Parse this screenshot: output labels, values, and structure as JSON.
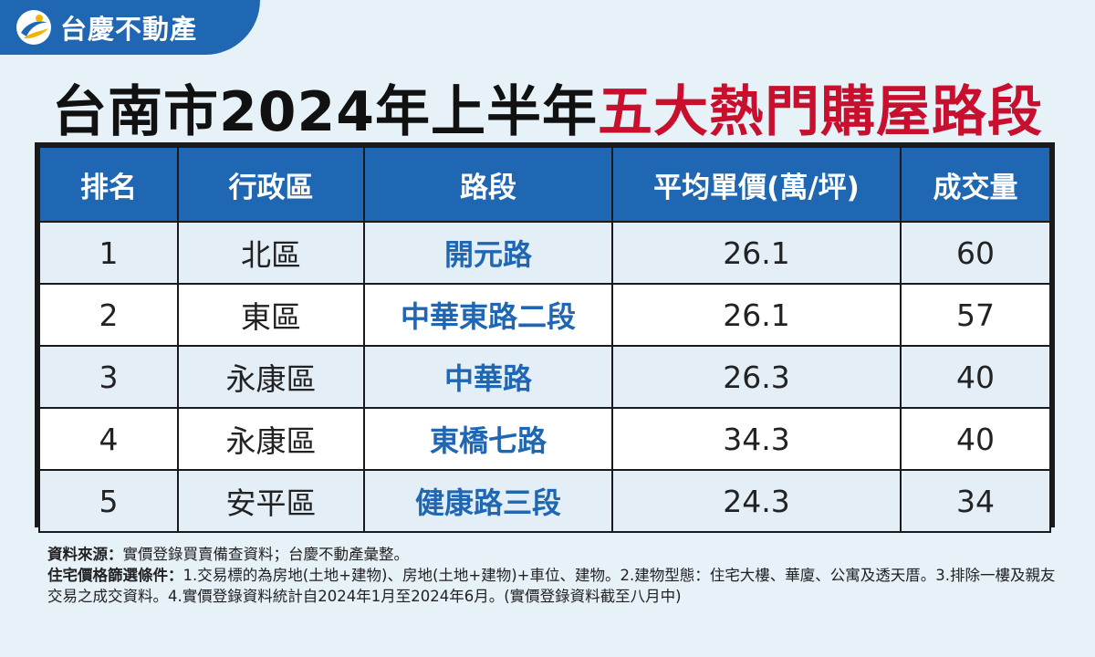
{
  "brand": {
    "name": "台慶不動產",
    "logo_icon": "taching-logo-icon"
  },
  "headline": {
    "part1": "台南市2024年上半年",
    "part2": "五大熱門購屋路段"
  },
  "table": {
    "headers": [
      "排名",
      "行政區",
      "路段",
      "平均單價(萬/坪)",
      "成交量"
    ],
    "rows": [
      {
        "rank": "1",
        "district": "北區",
        "road": "開元路",
        "price": "26.1",
        "volume": "60"
      },
      {
        "rank": "2",
        "district": "東區",
        "road": "中華東路二段",
        "price": "26.1",
        "volume": "57"
      },
      {
        "rank": "3",
        "district": "永康區",
        "road": "中華路",
        "price": "26.3",
        "volume": "40"
      },
      {
        "rank": "4",
        "district": "永康區",
        "road": "東橋七路",
        "price": "34.3",
        "volume": "40"
      },
      {
        "rank": "5",
        "district": "安平區",
        "road": "健康路三段",
        "price": "24.3",
        "volume": "34"
      }
    ]
  },
  "notes": {
    "source_label": "資料來源：",
    "source_text": "實價登錄買賣備查資料；台慶不動產彙整。",
    "criteria_label": "住宅價格篩選條件：",
    "criteria_text": "1.交易標的為房地(土地+建物)、房地(土地+建物)+車位、建物。2.建物型態：住宅大樓、華廈、公寓及透天厝。3.排除一樓及親友交易之成交資料。4.實價登錄資料統計自2024年1月至2024年6月。(實價登錄資料截至八月中)"
  },
  "colors": {
    "brand_blue": "#1f67b3",
    "headline_red": "#c8102e",
    "background": "#e6f1f8"
  }
}
